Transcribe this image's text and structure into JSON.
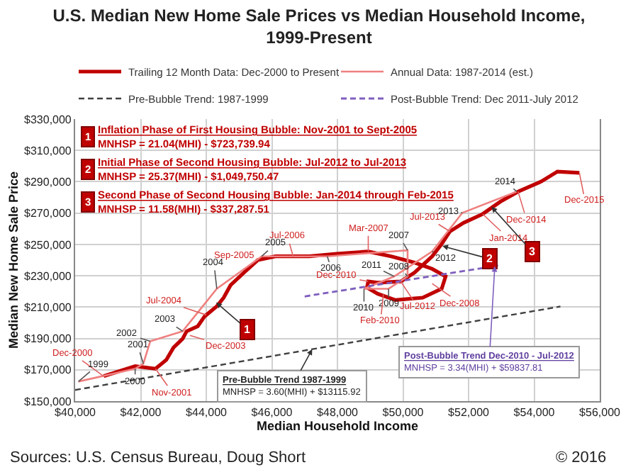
{
  "chart_data": {
    "type": "line",
    "title": "U.S. Median New Home Sale Prices vs Median Household Income,\n1999-Present",
    "xlabel": "Median Household Income",
    "ylabel": "Median New Home Sale Price",
    "xlim": [
      40000,
      56000
    ],
    "xticks": [
      {
        "value": 40000,
        "label": "$40,000"
      },
      {
        "value": 42000,
        "label": "$42,000"
      },
      {
        "value": 44000,
        "label": "$44,000"
      },
      {
        "value": 46000,
        "label": "$46,000"
      },
      {
        "value": 48000,
        "label": "$48,000"
      },
      {
        "value": 50000,
        "label": "$50,000"
      },
      {
        "value": 52000,
        "label": "$52,000"
      },
      {
        "value": 54000,
        "label": "$54,000"
      },
      {
        "value": 56000,
        "label": "$56,000"
      }
    ],
    "ylim": [
      150000,
      330000
    ],
    "yticks": [
      {
        "value": 150000,
        "label": "$150,000"
      },
      {
        "value": 170000,
        "label": "$170,000"
      },
      {
        "value": 190000,
        "label": "$190,000"
      },
      {
        "value": 210000,
        "label": "$210,000"
      },
      {
        "value": 230000,
        "label": "$230,000"
      },
      {
        "value": 250000,
        "label": "$250,000"
      },
      {
        "value": 270000,
        "label": "$270,000"
      },
      {
        "value": 290000,
        "label": "$290,000"
      },
      {
        "value": 310000,
        "label": "$310,000"
      },
      {
        "value": 330000,
        "label": "$330,000"
      }
    ],
    "grid": true,
    "legend": "top",
    "marker": "none",
    "series": [
      {
        "name": "Trailing 12 Month Data: Dec-2000 to Present",
        "color": "#c00000",
        "line_style": "solid",
        "x": [
          40870,
          41830,
          42450,
          42780,
          43000,
          43280,
          43400,
          43740,
          43950,
          44320,
          44530,
          44740,
          45150,
          45570,
          46110,
          46650,
          47150,
          47980,
          48940,
          49640,
          50350,
          50890,
          51300,
          51180,
          50600,
          49770,
          49230,
          48900,
          48940,
          49230,
          49930,
          50350,
          50890,
          51180,
          51430,
          51850,
          52430,
          52970,
          53510,
          54210,
          54710,
          55380
        ],
        "values": [
          165900,
          172300,
          170700,
          176300,
          184200,
          189800,
          194600,
          197800,
          204100,
          210500,
          216000,
          224000,
          232000,
          240000,
          242400,
          242400,
          242400,
          244000,
          245500,
          242400,
          238400,
          234400,
          229600,
          221700,
          216000,
          214500,
          218500,
          222500,
          226400,
          225600,
          226400,
          232000,
          242400,
          250300,
          258300,
          263800,
          269400,
          277300,
          283700,
          290100,
          296500,
          295700
        ]
      },
      {
        "name": "Annual Data: 1987-2014 (est.)",
        "color": "#f08080",
        "line_style": "solid",
        "x": [
          40100,
          41830,
          42080,
          42290,
          43280,
          44320,
          45690,
          47690,
          50140,
          50140,
          49560,
          48810,
          49730,
          50890,
          51810,
          53470
        ],
        "values": [
          162500,
          170700,
          173900,
          188200,
          194600,
          221700,
          242400,
          242400,
          246300,
          229600,
          221700,
          221700,
          229600,
          245500,
          270200,
          283700
        ]
      },
      {
        "name": "Pre-Bubble Trend: 1987-1999",
        "color": "#404040",
        "line_style": "dashed",
        "x": [
          40000,
          54800
        ],
        "values": [
          157116,
          210396
        ]
      },
      {
        "name": "Post-Bubble Trend: Dec 2011-July 2012",
        "color": "#7f5fbf",
        "line_style": "dashed",
        "x": [
          47000,
          52900
        ],
        "values": [
          216818,
          236524
        ]
      }
    ],
    "annotations": [
      {
        "text": "Dec-2000",
        "x": 40870,
        "y": 165900
      },
      {
        "text": "1999",
        "x": 40100,
        "y": 162500
      },
      {
        "text": "2000",
        "x": 41830,
        "y": 170700
      },
      {
        "text": "2001",
        "x": 42080,
        "y": 173900
      },
      {
        "text": "Nov-2001",
        "x": 42450,
        "y": 170700
      },
      {
        "text": "2002",
        "x": 42290,
        "y": 188200
      },
      {
        "text": "2003",
        "x": 43280,
        "y": 194600
      },
      {
        "text": "Dec-2003",
        "x": 43500,
        "y": 192000
      },
      {
        "text": "Jul-2004",
        "x": 44000,
        "y": 205000
      },
      {
        "text": "2004",
        "x": 44320,
        "y": 221700
      },
      {
        "text": "Sep-2005",
        "x": 45570,
        "y": 240000
      },
      {
        "text": "2005",
        "x": 45690,
        "y": 242400
      },
      {
        "text": "Jul-2006",
        "x": 46650,
        "y": 242400
      },
      {
        "text": "2006",
        "x": 47690,
        "y": 242400
      },
      {
        "text": "Mar-2007",
        "x": 48940,
        "y": 245500
      },
      {
        "text": "2007",
        "x": 50140,
        "y": 246300
      },
      {
        "text": "2008",
        "x": 50140,
        "y": 229600
      },
      {
        "text": "Dec-2008",
        "x": 50890,
        "y": 225000
      },
      {
        "text": "2011",
        "x": 49730,
        "y": 229600
      },
      {
        "text": "Dec-2010",
        "x": 48940,
        "y": 226400
      },
      {
        "text": "2010",
        "x": 48810,
        "y": 221700
      },
      {
        "text": "2009",
        "x": 49560,
        "y": 221700
      },
      {
        "text": "Feb-2010",
        "x": 49400,
        "y": 218000
      },
      {
        "text": "Jul-2012",
        "x": 49930,
        "y": 226400
      },
      {
        "text": "2012",
        "x": 50890,
        "y": 245500
      },
      {
        "text": "Jul-2013",
        "x": 51430,
        "y": 258300
      },
      {
        "text": "2013",
        "x": 51810,
        "y": 270200
      },
      {
        "text": "Jan-2014",
        "x": 52430,
        "y": 269400
      },
      {
        "text": "2014",
        "x": 53470,
        "y": 283700
      },
      {
        "text": "Dec-2014",
        "x": 53510,
        "y": 283700
      },
      {
        "text": "Dec-2015",
        "x": 55380,
        "y": 295700
      },
      {
        "text": "1",
        "x": 44300,
        "y": 213000
      },
      {
        "text": "2",
        "x": 51200,
        "y": 249000
      },
      {
        "text": "3",
        "x": 52700,
        "y": 274000
      },
      {
        "text": "Pre-Bubble Trend 1987-1999\nMNHSP = 3.60(MHI) + $13115.92",
        "x": 47230,
        "y": 183140
      },
      {
        "text": "Post-Bubble Trend Dec-2010 - Jul-2012\nMNHSP = 3.34(MHI) + $59837.81",
        "x": 52800,
        "y": 236190
      },
      "1",
      "Inflation Phase of First Housing Bubble: Nov-2001 to Sept-2005\nMNHSP = 21.04(MHI) - $723,739.94",
      "2",
      "Initial Phase of Second Housing Bubble: Jul-2012 to Jul-2013\nMNHSP = 25.37(MHI) - $1,049,750.47",
      "3",
      "Second Phase of Second Housing Bubble: Jan-2014 through Feb-2015\nMNHSP = 11.58(MHI) - $337,287.51",
      "Sources: U.S. Census Bureau, Doug Short",
      "© 2016"
    ]
  }
}
